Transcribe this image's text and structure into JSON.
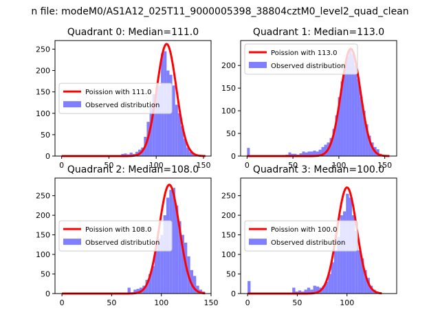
{
  "suptitle": "n file: modeM0/AS1A12_025T11_9000005398_38804cztM0_level2_quad_clean",
  "colors": {
    "observed": "#7f7fff",
    "poisson": "#ff0000"
  },
  "chart_data": [
    {
      "type": "bar",
      "title": "Quadrant 0: Median=111.0",
      "median": 111.0,
      "xlim": [
        -7,
        158
      ],
      "ylim": [
        0,
        270
      ],
      "xticks": [
        0,
        50,
        100,
        150
      ],
      "yticks": [
        0,
        50,
        100,
        150,
        200,
        250
      ],
      "bin_width": 3,
      "observed": {
        "name": "Observed distribution",
        "x": [
          63,
          66,
          69,
          72,
          75,
          78,
          81,
          84,
          87,
          90,
          93,
          96,
          99,
          102,
          105,
          108,
          111,
          114,
          117,
          120,
          123,
          126,
          129,
          132,
          135,
          138
        ],
        "values": [
          5,
          6,
          4,
          8,
          5,
          10,
          15,
          20,
          45,
          80,
          115,
          145,
          160,
          165,
          240,
          245,
          200,
          190,
          165,
          120,
          100,
          70,
          40,
          20,
          10,
          5
        ]
      },
      "poisson": {
        "name": "Poission with 111.0",
        "peak": 262,
        "sigma": 10.3,
        "x_range": [
          0,
          152
        ]
      }
    },
    {
      "type": "bar",
      "title": "Quadrant 1: Median=113.0",
      "median": 113.0,
      "xlim": [
        -7,
        163
      ],
      "ylim": [
        0,
        255
      ],
      "xticks": [
        0,
        50,
        100,
        150
      ],
      "yticks": [
        0,
        50,
        100,
        150,
        200
      ],
      "bin_width": 3,
      "observed": {
        "name": "Observed distribution",
        "x": [
          0,
          3,
          6,
          42,
          45,
          48,
          51,
          54,
          57,
          60,
          63,
          66,
          69,
          72,
          75,
          78,
          81,
          84,
          87,
          90,
          93,
          96,
          99,
          102,
          105,
          108,
          111,
          114,
          117,
          120,
          123,
          126,
          129,
          132,
          135,
          138,
          141,
          144,
          147,
          150
        ],
        "values": [
          18,
          2,
          2,
          3,
          8,
          5,
          5,
          3,
          6,
          10,
          8,
          10,
          10,
          12,
          10,
          14,
          20,
          25,
          30,
          40,
          60,
          90,
          130,
          165,
          200,
          220,
          235,
          225,
          200,
          170,
          130,
          100,
          70,
          45,
          30,
          20,
          15,
          5,
          3,
          2
        ]
      },
      "poisson": {
        "name": "Poission with 113.0",
        "peak": 237,
        "sigma": 10.5,
        "x_range": [
          0,
          155
        ]
      }
    },
    {
      "type": "bar",
      "title": "Quadrant 2: Median=108.0",
      "median": 108.0,
      "xlim": [
        -7,
        150
      ],
      "ylim": [
        0,
        295
      ],
      "xticks": [
        0,
        50,
        100,
        150
      ],
      "yticks": [
        0,
        50,
        100,
        150,
        200,
        250
      ],
      "bin_width": 3,
      "observed": {
        "name": "Observed distribution",
        "x": [
          66,
          69,
          72,
          75,
          78,
          81,
          84,
          87,
          90,
          93,
          96,
          99,
          102,
          105,
          108,
          111,
          114,
          117,
          120,
          123,
          126,
          129,
          132,
          135,
          138,
          141
        ],
        "values": [
          15,
          3,
          10,
          12,
          15,
          20,
          35,
          50,
          70,
          110,
          140,
          150,
          200,
          245,
          265,
          270,
          225,
          185,
          150,
          130,
          95,
          60,
          45,
          20,
          10,
          5
        ]
      },
      "poisson": {
        "name": "Poission with 108.0",
        "peak": 278,
        "sigma": 10.2,
        "x_range": [
          0,
          144
        ]
      }
    },
    {
      "type": "bar",
      "title": "Quadrant 3: Median=100.0",
      "median": 100.0,
      "xlim": [
        -7,
        150
      ],
      "ylim": [
        0,
        295
      ],
      "xticks": [
        0,
        50,
        100
      ],
      "yticks": [
        0,
        50,
        100,
        150,
        200,
        250
      ],
      "bin_width": 3,
      "observed": {
        "name": "Observed distribution",
        "x": [
          0,
          3,
          45,
          48,
          51,
          54,
          57,
          60,
          63,
          66,
          69,
          72,
          75,
          78,
          81,
          84,
          87,
          90,
          93,
          96,
          99,
          102,
          105,
          108,
          111,
          114,
          117,
          120,
          123,
          126,
          129,
          132
        ],
        "values": [
          32,
          2,
          15,
          5,
          8,
          5,
          10,
          15,
          10,
          20,
          18,
          15,
          20,
          30,
          50,
          80,
          110,
          145,
          200,
          210,
          255,
          245,
          200,
          160,
          110,
          90,
          60,
          40,
          20,
          10,
          5,
          2
        ]
      },
      "poisson": {
        "name": "Poission with 100.0",
        "peak": 271,
        "sigma": 10.0,
        "x_range": [
          0,
          135
        ]
      }
    }
  ]
}
